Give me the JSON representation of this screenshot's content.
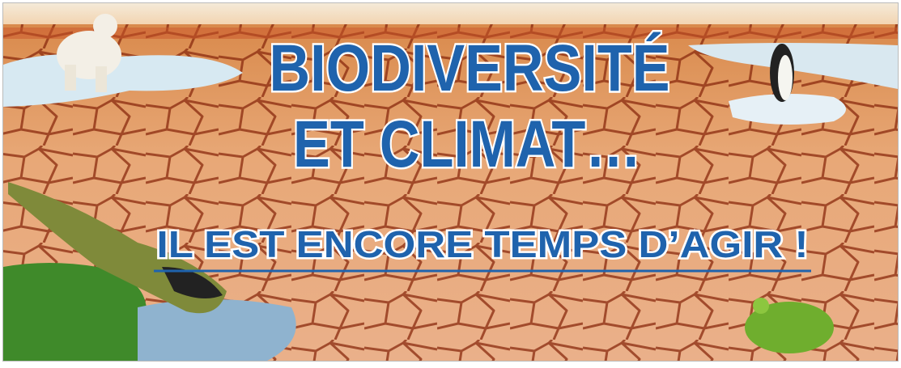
{
  "banner": {
    "title_line1": "BIODIVERSITÉ",
    "title_line2": "ET CLIMAT…",
    "tagline": "IL EST ENCORE TEMPS D’AGIR !"
  }
}
